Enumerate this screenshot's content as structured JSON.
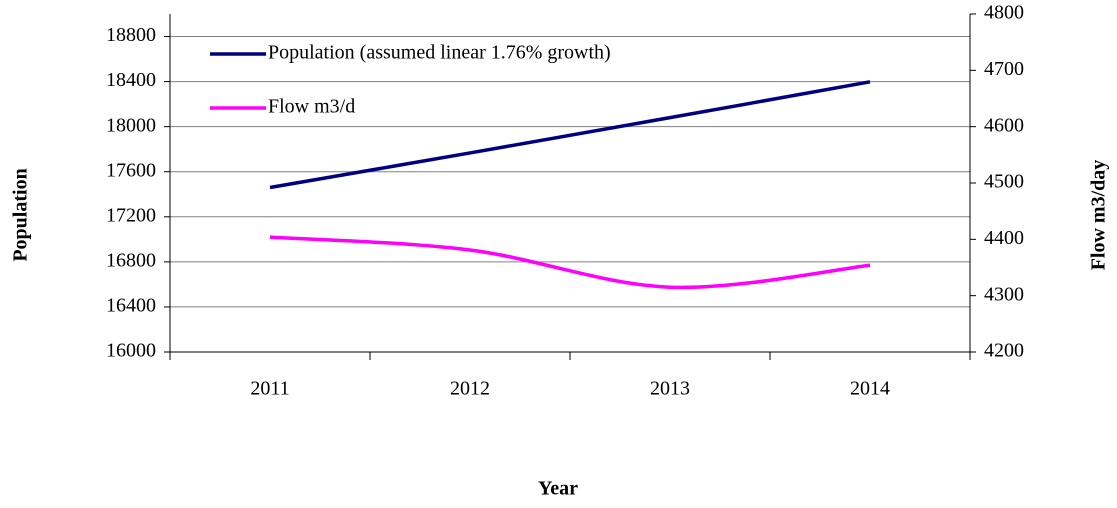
{
  "chart_data": {
    "type": "line",
    "x_label": "Year",
    "y_label": "Population",
    "y2_label": "Flow m3/day",
    "categories": [
      "2011",
      "2012",
      "2013",
      "2014"
    ],
    "series": [
      {
        "name": "Population (assumed linear 1.76% growth)",
        "color": "#000080",
        "values": [
          17460,
          17767,
          18080,
          18398
        ]
      },
      {
        "name": "Flow m3/d",
        "color": "#ff00ff",
        "axis": "y2",
        "values": [
          4404,
          4381,
          4315,
          4354
        ]
      }
    ],
    "ylim": [
      16000,
      19000
    ],
    "yticks": [
      16000,
      16400,
      16800,
      17200,
      17600,
      18000,
      18400,
      18800
    ],
    "y2lim": [
      4200,
      4800
    ],
    "y2ticks": [
      4200,
      4300,
      4400,
      4500,
      4600,
      4700,
      4800
    ],
    "grid": true,
    "smooth": true,
    "legend": "top-left"
  }
}
